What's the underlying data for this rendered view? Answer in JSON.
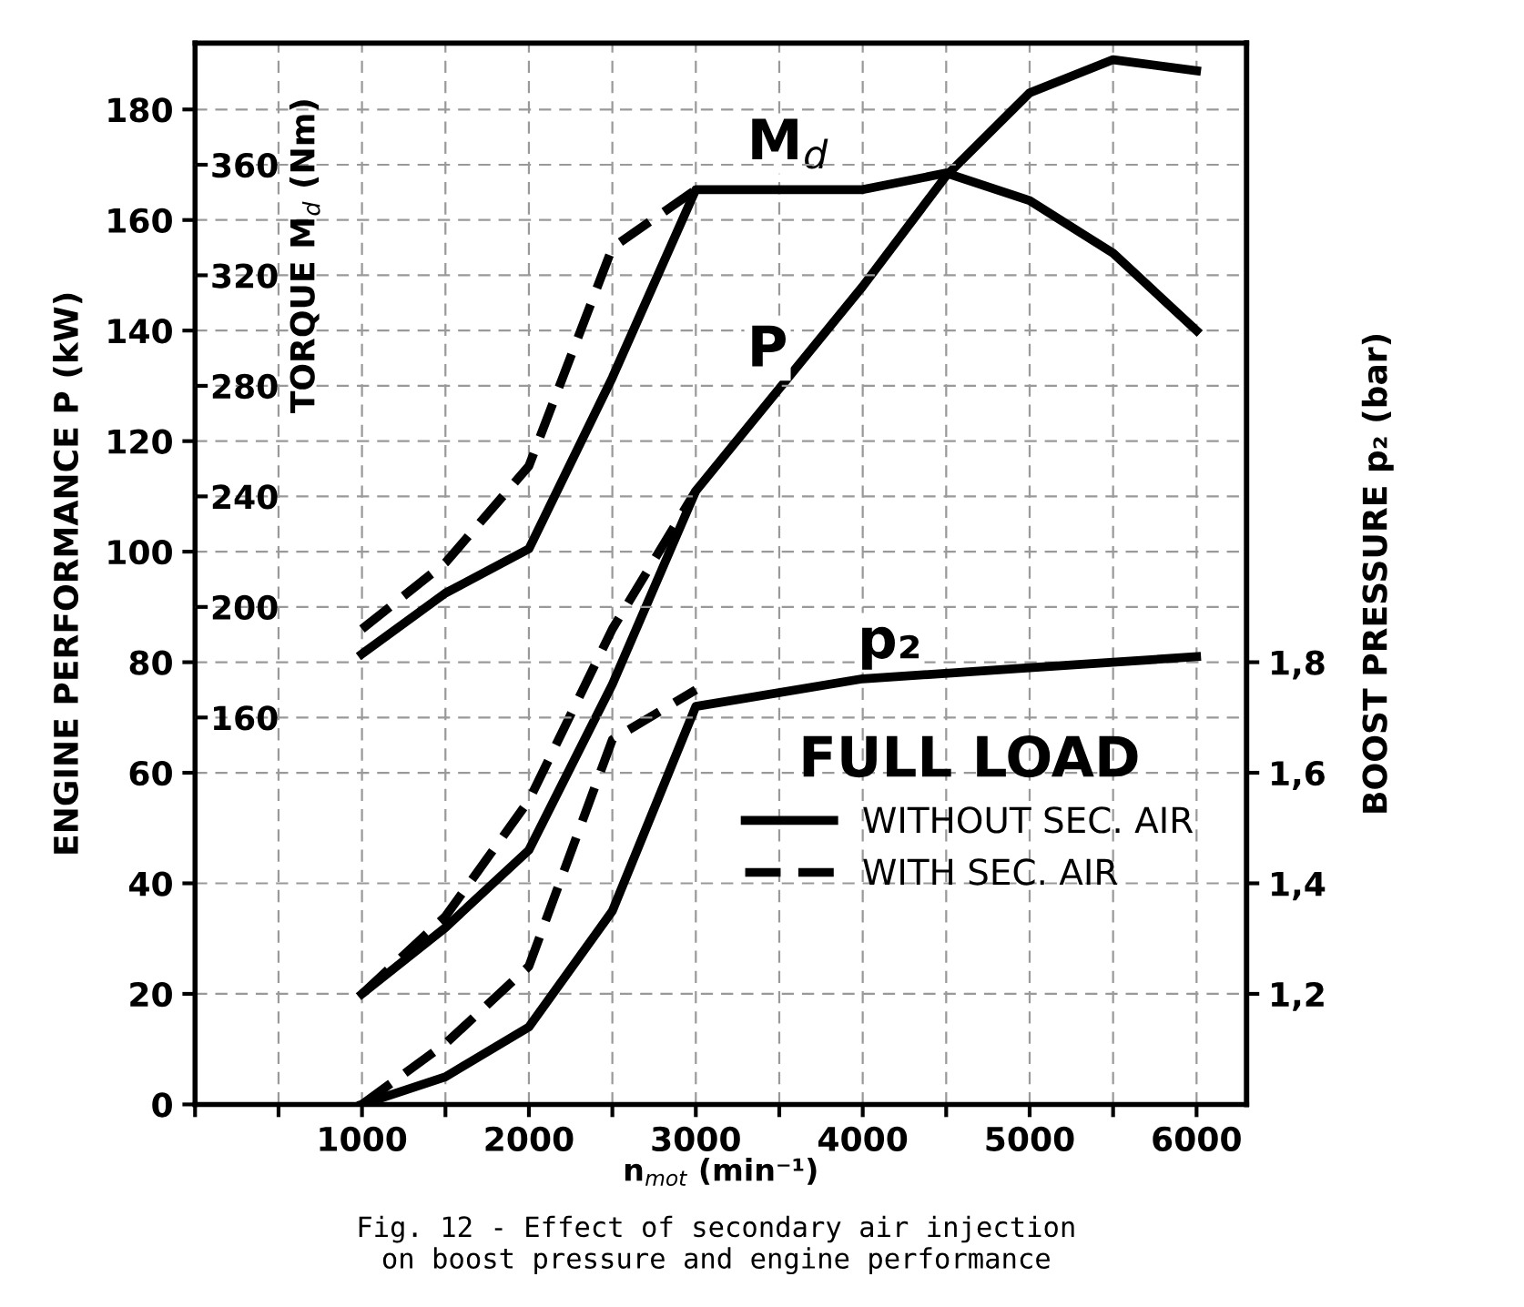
{
  "chart_data": {
    "type": "line",
    "xlabel": "n$_{mot}$ (min⁻¹)",
    "ylabel": "ENGINE PERFORMANCE P (kW)",
    "y2label": "BOOST PRESSURE p₂ (bar)",
    "y3label": "TORQUE M$_{d}$ (Nm)",
    "legend_title": "FULL LOAD",
    "legend": "bottom right",
    "grid": true,
    "xlim": [
      0,
      6300
    ],
    "xticks": [
      {
        "value": 0,
        "label": null
      },
      {
        "value": 500,
        "label": null
      },
      1000,
      {
        "value": 1500,
        "label": null
      },
      2000,
      {
        "value": 2500,
        "label": null
      },
      3000,
      {
        "value": 3500,
        "label": null
      },
      4000,
      {
        "value": 4500,
        "label": null
      },
      5000,
      {
        "value": 5500,
        "label": null
      },
      6000
    ],
    "ylim": [
      0,
      192
    ],
    "yticks": [
      0,
      20,
      40,
      60,
      80,
      100,
      120,
      140,
      160,
      180
    ],
    "y2lim": [
      1.0,
      2.92
    ],
    "y2ticks": [
      {
        "value": 1.2,
        "label": "1,2"
      },
      {
        "value": 1.4,
        "label": "1,4"
      },
      {
        "value": 1.6,
        "label": "1,6"
      },
      {
        "value": 1.8,
        "label": "1,8"
      }
    ],
    "y3lim": [
      20,
      404
    ],
    "y3ticks": [
      160,
      200,
      240,
      280,
      320,
      360
    ],
    "series": [
      {
        "name": "WITHOUT SEC. AIR",
        "color": "#000000",
        "line_style": "solid",
        "axis": "y3",
        "x": [
          1000,
          1500,
          2000,
          2500,
          3000,
          4000,
          4500,
          5000,
          5500,
          6000
        ],
        "values": [
          183,
          205,
          221,
          283,
          351,
          351,
          357,
          347,
          328,
          300
        ]
      },
      {
        "name": "WITH SEC. AIR",
        "color": "#000000",
        "line_style": "dashed",
        "axis": "y3",
        "x": [
          1000,
          1500,
          2000,
          2500,
          3000
        ],
        "values": [
          192,
          216,
          251,
          330,
          351
        ]
      },
      {
        "color": "#000000",
        "line_style": "solid",
        "x": [
          1000,
          1500,
          2000,
          2500,
          3000,
          4000,
          4500,
          5000,
          5500,
          6000
        ],
        "values": [
          20,
          32,
          46,
          76,
          111,
          148,
          168,
          183,
          189,
          187
        ]
      },
      {
        "color": "#000000",
        "line_style": "dashed",
        "x": [
          1000,
          1500,
          2000,
          2500,
          3000
        ],
        "values": [
          20,
          34,
          55,
          86,
          111
        ]
      },
      {
        "color": "#000000",
        "line_style": "solid",
        "axis": "y2",
        "x": [
          1000,
          1500,
          2000,
          2500,
          3000,
          4000,
          5000,
          6000
        ],
        "values": [
          1.0,
          1.05,
          1.14,
          1.35,
          1.72,
          1.77,
          1.79,
          1.81
        ]
      },
      {
        "color": "#000000",
        "line_style": "dashed",
        "axis": "y2",
        "x": [
          1000,
          1500,
          2000,
          2500,
          3000
        ],
        "values": [
          1.0,
          1.11,
          1.25,
          1.66,
          1.75
        ]
      }
    ],
    "annotations": [
      "M$_{d}$",
      "P",
      "p₂",
      "Fig. 12 - Effect of secondary air injection\non boost pressure and engine performance"
    ]
  }
}
